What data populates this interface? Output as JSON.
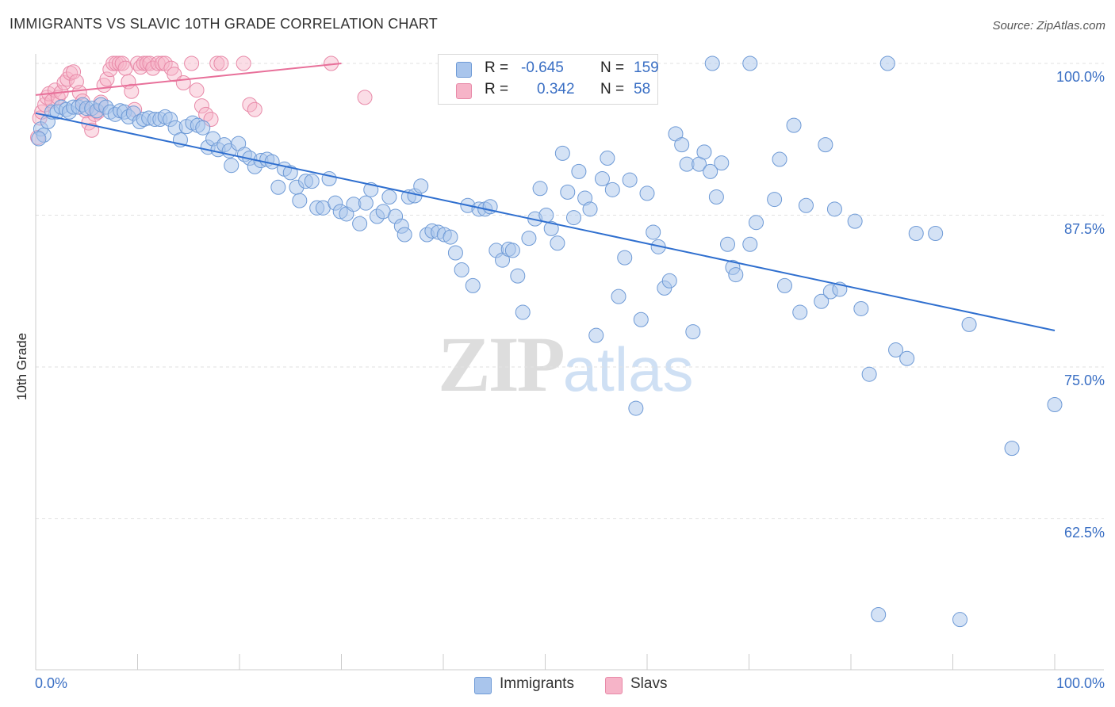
{
  "title": "IMMIGRANTS VS SLAVIC 10TH GRADE CORRELATION CHART",
  "source": "Source: ZipAtlas.com",
  "watermark": {
    "zip": "ZIP",
    "atlas": "atlas"
  },
  "legend_top": [
    {
      "r_label": "R =",
      "r_value": "-0.645",
      "n_label": "N =",
      "n_value": "159",
      "color": "#a9c5ec"
    },
    {
      "r_label": "R =",
      "r_value": "0.342",
      "n_label": "N =",
      "n_value": "58",
      "color": "#f6b4c8"
    }
  ],
  "legend_bottom": [
    {
      "label": "Immigrants",
      "color": "#a9c5ec"
    },
    {
      "label": "Slavs",
      "color": "#f6b4c8"
    }
  ],
  "chart_data": {
    "type": "scatter",
    "xlabel": "",
    "ylabel": "10th Grade",
    "xlim": [
      0,
      100
    ],
    "ylim": [
      52.5,
      101
    ],
    "x_tick_labels": [
      "0.0%",
      "100.0%"
    ],
    "y_ticks": [
      {
        "value": 100,
        "label": "100.0%"
      },
      {
        "value": 87.5,
        "label": "87.5%"
      },
      {
        "value": 75,
        "label": "75.0%"
      },
      {
        "value": 62.5,
        "label": "62.5%"
      }
    ],
    "grid": true,
    "colors": {
      "immigrants_fill": "#a9c5ec",
      "immigrants_stroke": "#6e9ad6",
      "immigrants_line": "#2f6fcf",
      "slavs_fill": "#f6b4c8",
      "slavs_stroke": "#e889a8",
      "slavs_line": "#e8709a"
    },
    "series": [
      {
        "name": "Immigrants",
        "trendline": {
          "x": [
            0,
            100
          ],
          "y": [
            95.9,
            78.0
          ]
        },
        "points": [
          [
            0.5,
            94.6
          ],
          [
            0.8,
            94.1
          ],
          [
            1.2,
            95.2
          ],
          [
            1.6,
            96.0
          ],
          [
            2.1,
            96.0
          ],
          [
            2.5,
            96.4
          ],
          [
            3.0,
            96.2
          ],
          [
            3.3,
            96.0
          ],
          [
            3.7,
            96.4
          ],
          [
            4.2,
            96.4
          ],
          [
            4.6,
            96.6
          ],
          [
            5.0,
            96.3
          ],
          [
            5.5,
            96.3
          ],
          [
            6.0,
            96.1
          ],
          [
            6.4,
            96.6
          ],
          [
            6.9,
            96.4
          ],
          [
            7.3,
            96.0
          ],
          [
            7.8,
            95.8
          ],
          [
            8.3,
            96.1
          ],
          [
            8.7,
            96.0
          ],
          [
            9.1,
            95.6
          ],
          [
            9.6,
            95.9
          ],
          [
            10.2,
            95.2
          ],
          [
            10.6,
            95.4
          ],
          [
            11.1,
            95.5
          ],
          [
            11.7,
            95.4
          ],
          [
            12.2,
            95.4
          ],
          [
            12.7,
            95.6
          ],
          [
            13.2,
            95.4
          ],
          [
            13.7,
            94.7
          ],
          [
            14.2,
            93.7
          ],
          [
            14.8,
            94.8
          ],
          [
            15.4,
            95.1
          ],
          [
            15.9,
            94.9
          ],
          [
            16.4,
            94.7
          ],
          [
            16.9,
            93.1
          ],
          [
            17.4,
            93.8
          ],
          [
            17.9,
            92.9
          ],
          [
            18.5,
            93.3
          ],
          [
            19.0,
            92.8
          ],
          [
            19.2,
            91.6
          ],
          [
            19.9,
            93.4
          ],
          [
            20.5,
            92.5
          ],
          [
            21.0,
            92.2
          ],
          [
            21.5,
            91.5
          ],
          [
            22.1,
            92.0
          ],
          [
            22.7,
            92.1
          ],
          [
            23.2,
            91.9
          ],
          [
            23.8,
            89.8
          ],
          [
            24.4,
            91.3
          ],
          [
            25.0,
            91.0
          ],
          [
            25.6,
            89.8
          ],
          [
            25.9,
            88.7
          ],
          [
            26.5,
            90.3
          ],
          [
            27.1,
            90.3
          ],
          [
            27.6,
            88.1
          ],
          [
            28.2,
            88.1
          ],
          [
            28.8,
            90.5
          ],
          [
            29.4,
            88.5
          ],
          [
            29.9,
            87.8
          ],
          [
            30.5,
            87.6
          ],
          [
            31.2,
            88.4
          ],
          [
            31.8,
            86.8
          ],
          [
            32.4,
            88.5
          ],
          [
            32.9,
            89.6
          ],
          [
            33.5,
            87.4
          ],
          [
            34.1,
            87.8
          ],
          [
            34.7,
            89.0
          ],
          [
            35.3,
            87.4
          ],
          [
            35.9,
            86.6
          ],
          [
            36.2,
            85.9
          ],
          [
            36.6,
            89.0
          ],
          [
            37.2,
            89.1
          ],
          [
            37.8,
            89.9
          ],
          [
            38.4,
            85.9
          ],
          [
            38.9,
            86.2
          ],
          [
            39.5,
            86.1
          ],
          [
            40.1,
            85.9
          ],
          [
            40.7,
            85.7
          ],
          [
            41.2,
            84.4
          ],
          [
            41.8,
            83.0
          ],
          [
            42.4,
            88.3
          ],
          [
            42.9,
            81.7
          ],
          [
            43.5,
            88.0
          ],
          [
            44.1,
            88.0
          ],
          [
            44.6,
            88.2
          ],
          [
            45.2,
            84.6
          ],
          [
            45.8,
            83.8
          ],
          [
            46.4,
            84.7
          ],
          [
            46.8,
            84.6
          ],
          [
            47.3,
            82.5
          ],
          [
            47.8,
            79.5
          ],
          [
            48.4,
            85.6
          ],
          [
            49.0,
            87.2
          ],
          [
            49.5,
            89.7
          ],
          [
            50.1,
            87.5
          ],
          [
            50.6,
            86.4
          ],
          [
            51.2,
            85.2
          ],
          [
            51.7,
            92.6
          ],
          [
            52.2,
            89.4
          ],
          [
            52.8,
            87.3
          ],
          [
            53.3,
            91.1
          ],
          [
            53.9,
            88.9
          ],
          [
            54.4,
            88.0
          ],
          [
            55.0,
            77.6
          ],
          [
            55.6,
            90.5
          ],
          [
            56.1,
            92.2
          ],
          [
            56.6,
            89.6
          ],
          [
            57.2,
            80.8
          ],
          [
            57.8,
            84.0
          ],
          [
            58.3,
            90.4
          ],
          [
            58.9,
            71.6
          ],
          [
            59.4,
            78.9
          ],
          [
            60.0,
            89.3
          ],
          [
            60.6,
            86.1
          ],
          [
            61.1,
            84.9
          ],
          [
            61.7,
            81.5
          ],
          [
            62.2,
            82.1
          ],
          [
            62.8,
            94.2
          ],
          [
            63.4,
            93.3
          ],
          [
            63.9,
            91.7
          ],
          [
            64.5,
            77.9
          ],
          [
            65.1,
            91.7
          ],
          [
            65.6,
            92.7
          ],
          [
            66.2,
            91.1
          ],
          [
            66.8,
            89.0
          ],
          [
            67.3,
            91.8
          ],
          [
            67.9,
            85.1
          ],
          [
            68.4,
            83.2
          ],
          [
            68.7,
            82.6
          ],
          [
            70.1,
            85.1
          ],
          [
            70.7,
            86.9
          ],
          [
            72.5,
            88.8
          ],
          [
            73.0,
            92.1
          ],
          [
            73.5,
            81.7
          ],
          [
            74.4,
            94.9
          ],
          [
            75.0,
            79.5
          ],
          [
            75.6,
            88.3
          ],
          [
            77.1,
            80.4
          ],
          [
            77.5,
            93.3
          ],
          [
            78.0,
            81.2
          ],
          [
            78.4,
            88.0
          ],
          [
            78.9,
            81.4
          ],
          [
            80.4,
            87.0
          ],
          [
            81.0,
            79.8
          ],
          [
            81.8,
            74.4
          ],
          [
            82.7,
            54.6
          ],
          [
            84.4,
            76.4
          ],
          [
            85.5,
            75.7
          ],
          [
            86.4,
            86.0
          ],
          [
            88.3,
            86.0
          ],
          [
            90.7,
            54.2
          ],
          [
            91.6,
            78.5
          ],
          [
            95.8,
            68.3
          ],
          [
            100.0,
            71.9
          ],
          [
            66.4,
            100.0
          ],
          [
            70.1,
            100.0
          ],
          [
            83.6,
            100.0
          ],
          [
            0.3,
            93.8
          ]
        ]
      },
      {
        "name": "Slavs",
        "trendline": {
          "x": [
            0,
            30
          ],
          "y": [
            97.4,
            100.0
          ]
        },
        "points": [
          [
            0.2,
            93.9
          ],
          [
            0.4,
            95.5
          ],
          [
            0.6,
            96.0
          ],
          [
            0.9,
            96.6
          ],
          [
            1.1,
            97.2
          ],
          [
            1.3,
            97.5
          ],
          [
            1.6,
            96.9
          ],
          [
            1.9,
            97.8
          ],
          [
            2.2,
            97.2
          ],
          [
            2.5,
            97.6
          ],
          [
            2.8,
            98.4
          ],
          [
            3.1,
            98.7
          ],
          [
            3.4,
            99.2
          ],
          [
            3.7,
            99.3
          ],
          [
            4.0,
            98.5
          ],
          [
            4.3,
            97.6
          ],
          [
            4.6,
            96.9
          ],
          [
            4.9,
            96.1
          ],
          [
            5.2,
            95.1
          ],
          [
            5.5,
            94.5
          ],
          [
            5.8,
            95.8
          ],
          [
            6.1,
            96.0
          ],
          [
            6.4,
            96.8
          ],
          [
            6.7,
            98.2
          ],
          [
            7.0,
            98.7
          ],
          [
            7.3,
            99.5
          ],
          [
            7.6,
            100.0
          ],
          [
            7.9,
            100.0
          ],
          [
            8.2,
            100.0
          ],
          [
            8.5,
            100.0
          ],
          [
            8.8,
            99.6
          ],
          [
            9.1,
            98.5
          ],
          [
            9.4,
            97.7
          ],
          [
            9.7,
            96.2
          ],
          [
            10.0,
            100.0
          ],
          [
            10.3,
            99.7
          ],
          [
            10.6,
            100.0
          ],
          [
            10.9,
            100.0
          ],
          [
            11.2,
            100.0
          ],
          [
            11.5,
            99.6
          ],
          [
            12.0,
            100.0
          ],
          [
            12.4,
            100.0
          ],
          [
            12.7,
            100.0
          ],
          [
            13.3,
            99.6
          ],
          [
            13.6,
            99.1
          ],
          [
            14.5,
            98.4
          ],
          [
            15.3,
            100.0
          ],
          [
            15.8,
            97.8
          ],
          [
            16.3,
            96.5
          ],
          [
            16.7,
            95.8
          ],
          [
            17.2,
            95.4
          ],
          [
            17.8,
            100.0
          ],
          [
            18.2,
            100.0
          ],
          [
            20.4,
            100.0
          ],
          [
            21.0,
            96.6
          ],
          [
            21.5,
            96.2
          ],
          [
            29.0,
            100.0
          ],
          [
            32.3,
            97.2
          ]
        ]
      }
    ]
  }
}
